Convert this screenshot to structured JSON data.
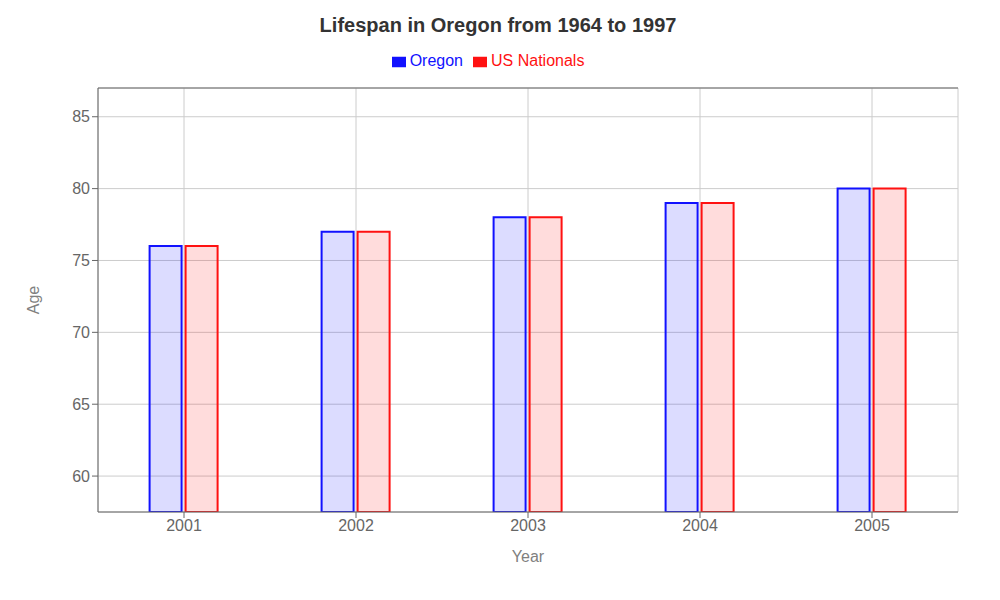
{
  "chart_data": {
    "type": "bar",
    "title": "Lifespan in Oregon from 1964 to 1997",
    "x_label": "Year",
    "y_label": "Age",
    "categories": [
      "2001",
      "2002",
      "2003",
      "2004",
      "2005"
    ],
    "series": [
      {
        "name": "Oregon",
        "color": "#1111ff",
        "values": [
          76,
          77,
          78,
          79,
          80
        ]
      },
      {
        "name": "US Nationals",
        "color": "#ff1111",
        "values": [
          76,
          77,
          78,
          79,
          80
        ]
      }
    ],
    "ylim": [
      57.5,
      87
    ],
    "yticks": [
      60,
      65,
      70,
      75,
      80,
      85
    ],
    "grid": true,
    "legend": "top"
  }
}
